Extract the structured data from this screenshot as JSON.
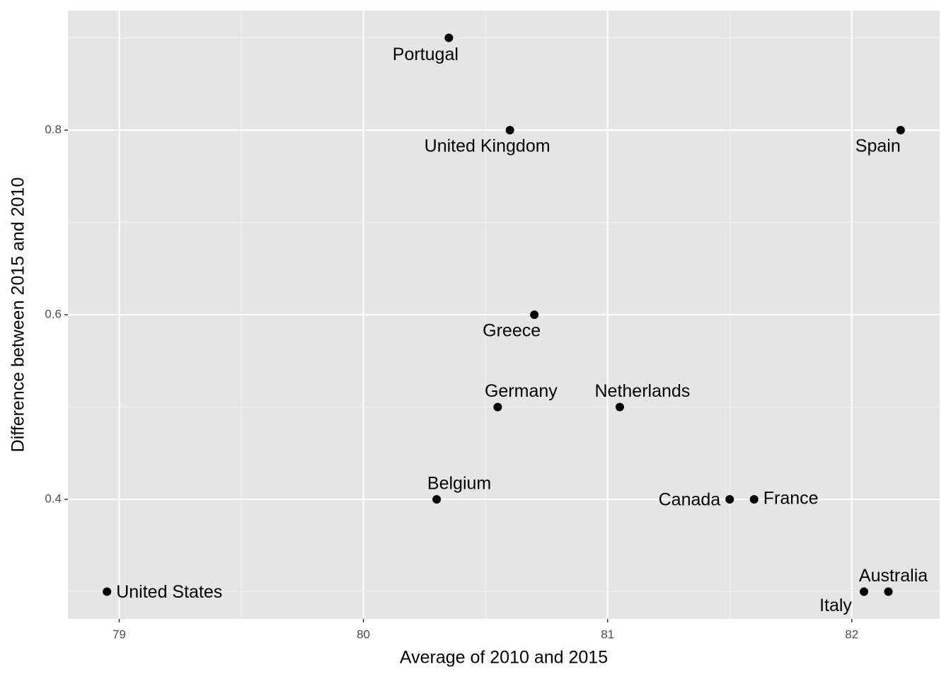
{
  "chart_data": {
    "type": "scatter",
    "xlabel": "Average of 2010 and 2015",
    "ylabel": "Difference between 2015 and 2010",
    "labels": [
      "Portugal",
      "United Kingdom",
      "Spain",
      "Greece",
      "Germany",
      "Netherlands",
      "Belgium",
      "Canada",
      "France",
      "United States",
      "Italy",
      "Australia"
    ],
    "x": [
      80.35,
      80.6,
      82.2,
      80.7,
      80.55,
      81.05,
      80.3,
      81.5,
      81.6,
      78.95,
      82.05,
      82.15
    ],
    "values": [
      0.9,
      0.8,
      0.8,
      0.6,
      0.5,
      0.5,
      0.4,
      0.4,
      0.4,
      0.3,
      0.3,
      0.3
    ],
    "color": "#000000",
    "xlim": [
      78.79,
      82.36
    ],
    "ylim": [
      0.2705,
      0.9295
    ],
    "xticks": [
      79,
      80,
      81,
      82
    ],
    "yticks": [
      0.4,
      0.6,
      0.8
    ],
    "grid": true
  }
}
